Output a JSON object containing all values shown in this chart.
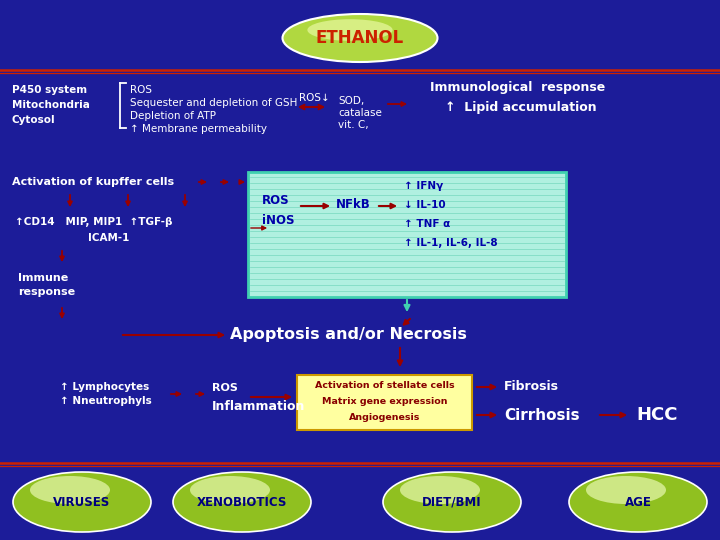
{
  "bg_color": "#1c1c99",
  "title": "ETHANOL",
  "title_ellipse_color_top": "#d4f06c",
  "title_ellipse_color_bot": "#a8d030",
  "title_text_color": "#cc2200",
  "bottom_ellipses": [
    "VIRUSES",
    "XENOBIOTICS",
    "DIET/BMI",
    "AGE"
  ],
  "ellipse_fill_top": "#e8f8a0",
  "ellipse_fill_bot": "#90c030",
  "ellipse_text_color": "#000080",
  "left_labels": [
    "P450 system",
    "Mitochondria",
    "Cytosol"
  ],
  "ros_text": [
    "ROS",
    "Sequester and depletion of GSH",
    "Depletion of ATP",
    "↑ Membrane permeability"
  ],
  "sod_text": [
    "SOD,",
    "catalase",
    "vit. C,"
  ],
  "immunological_text": [
    "Immunological  response",
    "↑  Lipid accumulation"
  ],
  "kupffer_text": "Activation of kupffer cells",
  "ros_inos": [
    "ROS",
    "iNOS"
  ],
  "nfkb_text": "NFkB",
  "cytokines": [
    "↑ IFNγ",
    "↓ IL-10",
    "↑ TNF α",
    "↑ IL-1, IL-6, IL-8"
  ],
  "cd14_text": "↑CD14   MIP, MIP1  ↑TGF-β",
  "icam_text": "ICAM-1",
  "immune_text": [
    "Immune",
    "response"
  ],
  "lymph_text": [
    "↑ Lymphocytes",
    "↑ Nneutrophyls"
  ],
  "ros_inflam": "ROS",
  "inflammation": "Inflammation",
  "apoptosis": "Apoptosis and/or Necrosis",
  "stellate_box": [
    "Activation of stellate cells",
    "Matrix gene expression",
    "Angiogenesis"
  ],
  "fibrosis": "Fibrosis",
  "cirrhosis": "Cirrhosis",
  "hcc": "HCC",
  "white": "#ffffff",
  "dark_red": "#990000",
  "blue_text": "#0000aa",
  "cyan_box_fill": "#b0f0e0",
  "cyan_box_line": "#40d0b0",
  "yellow_box": "#ffffa0",
  "sep_line": "#cc2200"
}
